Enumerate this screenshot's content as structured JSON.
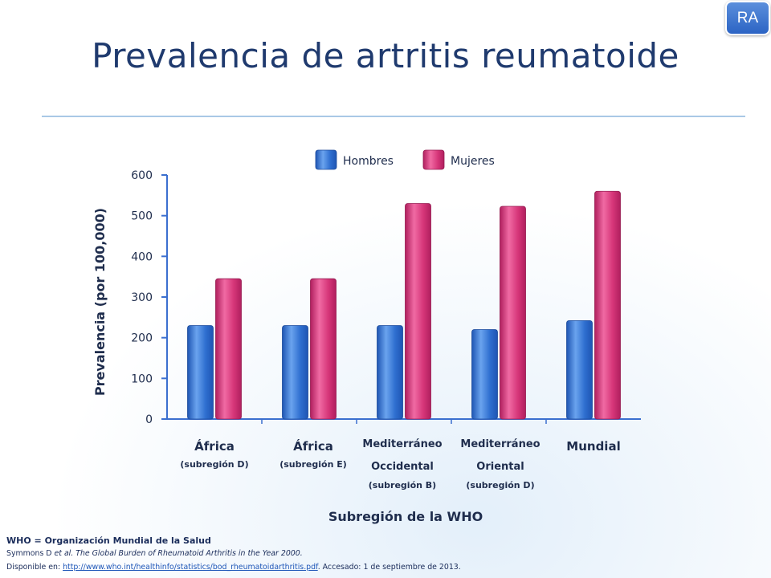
{
  "badge": "RA",
  "title": "Prevalencia de artritis reumatoide",
  "footnotes": {
    "definition": "WHO = Organización Mundial de la Salud",
    "citation_author": "Symmons D ",
    "citation_rest": "et al. The Global Burden of Rheumatoid Arthritis in the Year 2000.",
    "source_prefix": "Disponible en: ",
    "source_url": "http://www.who.int/healthinfo/statistics/bod_rheumatoidarthritis.pdf",
    "source_suffix": ". Accesado: 1 de septiembre de 2013."
  },
  "chart_data": {
    "type": "bar",
    "title": "",
    "xlabel": "Subregión de la WHO",
    "ylabel": "Prevalencia (por 100,000)",
    "ylim": [
      0,
      600
    ],
    "yticks": [
      0,
      100,
      200,
      300,
      400,
      500,
      600
    ],
    "grid": false,
    "legend_position": "top",
    "categories": [
      {
        "name": "África",
        "lines": [
          "(subregión D)"
        ]
      },
      {
        "name": "África",
        "lines": [
          "(subregión E)"
        ]
      },
      {
        "name": "Mediterráneo",
        "lines": [
          "Occidental",
          "(subregión B)"
        ]
      },
      {
        "name": "Mediterráneo",
        "lines": [
          "Oriental",
          "(subregión D)"
        ]
      },
      {
        "name": "Mundial",
        "lines": []
      }
    ],
    "series": [
      {
        "name": "Hombres",
        "color": "#2f6fd0",
        "values": [
          230,
          230,
          230,
          220,
          242
        ]
      },
      {
        "name": "Mujeres",
        "color": "#d63679",
        "values": [
          345,
          345,
          530,
          523,
          560
        ]
      }
    ]
  }
}
